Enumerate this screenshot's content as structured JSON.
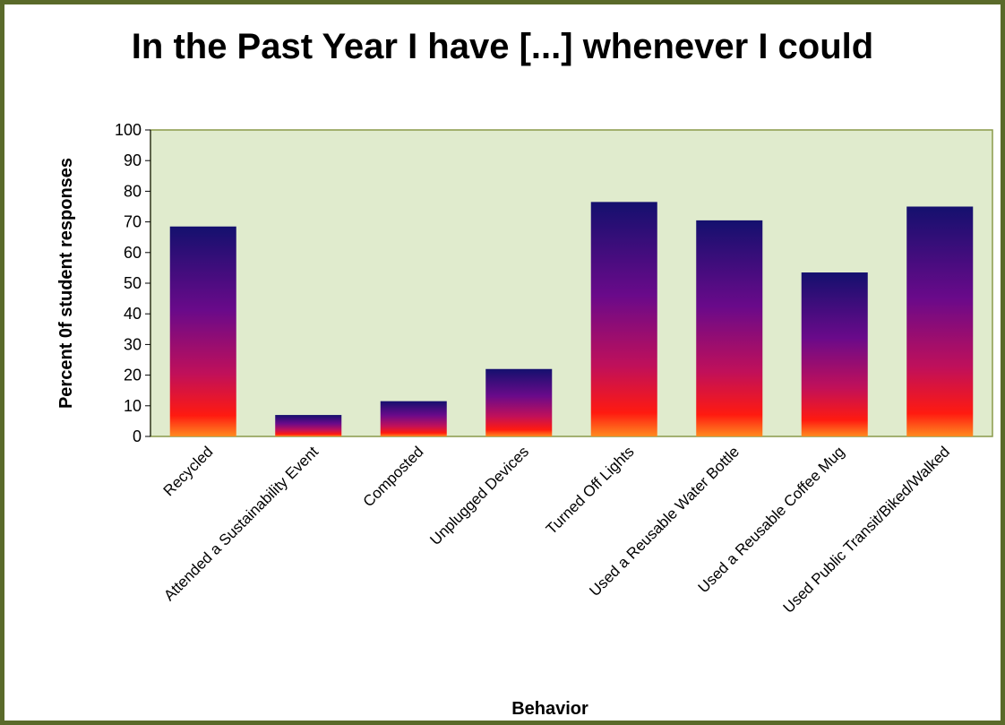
{
  "chart_data": {
    "type": "bar",
    "title": "In the Past Year I have [...] whenever I could",
    "xlabel": "Behavior",
    "ylabel": "Percent 0f student responses",
    "ylim": [
      0,
      100
    ],
    "yticks": [
      0,
      10,
      20,
      30,
      40,
      50,
      60,
      70,
      80,
      90,
      100
    ],
    "grid": false,
    "legend": "none",
    "categories": [
      "Recycled",
      "Attended a Sustainability Event",
      "Composted",
      "Unplugged Devices",
      "Turned Off Lights",
      "Used a Reusable Water Bottle",
      "Used a Reusable Coffee Mug",
      "Used Public Transit/Biked/Walked"
    ],
    "values": [
      68.5,
      7,
      11.5,
      22,
      76.5,
      70.5,
      53.5,
      75
    ],
    "colors": {
      "plot_background": "#e0ebcd",
      "plot_border": "#8a9a4a",
      "frame_border": "#5a6a2a",
      "bar_top": "#14106e",
      "bar_mid": "#6a0a8a",
      "bar_lower": "#c0105a",
      "bar_base": "#ff1a10",
      "bar_bottom": "#ff8a20"
    }
  }
}
